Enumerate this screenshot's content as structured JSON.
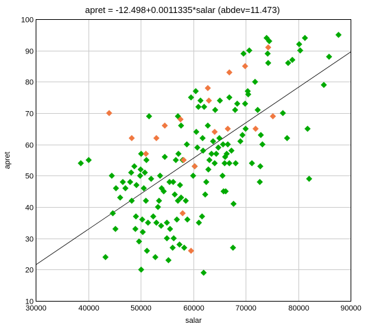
{
  "chart_data": {
    "type": "scatter",
    "title": "apret = -12.498+0.0011335*salar (abdev=11.473)",
    "xlabel": "salar",
    "ylabel": "apret",
    "xlim": [
      30000,
      90000
    ],
    "ylim": [
      10,
      100
    ],
    "x_ticks": [
      "30000",
      "40000",
      "50000",
      "60000",
      "70000",
      "80000",
      "90000"
    ],
    "y_ticks": [
      "10",
      "20",
      "30",
      "40",
      "50",
      "60",
      "70",
      "80",
      "90",
      "100"
    ],
    "grid": true,
    "fit_line": {
      "intercept": -12.498,
      "slope": 0.0011335,
      "color": "#000000"
    },
    "series": [
      {
        "color": "#00aa00",
        "points": [
          [
            38600,
            54
          ],
          [
            40100,
            55
          ],
          [
            43300,
            24
          ],
          [
            44500,
            50
          ],
          [
            44700,
            38
          ],
          [
            45200,
            33
          ],
          [
            45300,
            46
          ],
          [
            46100,
            43
          ],
          [
            46600,
            48
          ],
          [
            47100,
            46
          ],
          [
            48000,
            48
          ],
          [
            48200,
            51
          ],
          [
            48300,
            42
          ],
          [
            48800,
            53
          ],
          [
            49000,
            33
          ],
          [
            49100,
            37
          ],
          [
            49200,
            47
          ],
          [
            49700,
            29
          ],
          [
            49900,
            50
          ],
          [
            50000,
            52
          ],
          [
            50100,
            57
          ],
          [
            50100,
            20
          ],
          [
            50300,
            36
          ],
          [
            50400,
            32
          ],
          [
            50600,
            46
          ],
          [
            50800,
            51
          ],
          [
            51000,
            42
          ],
          [
            51100,
            55
          ],
          [
            51200,
            26
          ],
          [
            51400,
            35
          ],
          [
            51600,
            69
          ],
          [
            52000,
            49
          ],
          [
            52400,
            37
          ],
          [
            52800,
            24
          ],
          [
            53000,
            35
          ],
          [
            53300,
            40
          ],
          [
            53500,
            42
          ],
          [
            53700,
            50
          ],
          [
            53900,
            34
          ],
          [
            54000,
            46
          ],
          [
            54400,
            45
          ],
          [
            54600,
            56
          ],
          [
            55000,
            30
          ],
          [
            55000,
            35
          ],
          [
            55300,
            23
          ],
          [
            55500,
            48
          ],
          [
            55600,
            33
          ],
          [
            56100,
            27
          ],
          [
            56200,
            48
          ],
          [
            56300,
            30
          ],
          [
            56500,
            44
          ],
          [
            56700,
            55
          ],
          [
            56900,
            36
          ],
          [
            57100,
            69
          ],
          [
            57100,
            42
          ],
          [
            57200,
            57
          ],
          [
            57400,
            28
          ],
          [
            57500,
            47
          ],
          [
            57700,
            66
          ],
          [
            57700,
            43
          ],
          [
            58000,
            55
          ],
          [
            58300,
            27
          ],
          [
            58600,
            42
          ],
          [
            58800,
            60
          ],
          [
            58900,
            36
          ],
          [
            59600,
            75
          ],
          [
            60000,
            50
          ],
          [
            60300,
            53
          ],
          [
            60500,
            77
          ],
          [
            60600,
            64
          ],
          [
            60800,
            59
          ],
          [
            61000,
            72
          ],
          [
            61100,
            35
          ],
          [
            61400,
            74
          ],
          [
            61700,
            37
          ],
          [
            61800,
            62
          ],
          [
            61900,
            58
          ],
          [
            62000,
            19
          ],
          [
            62100,
            72
          ],
          [
            62300,
            44
          ],
          [
            62500,
            48
          ],
          [
            62800,
            66
          ],
          [
            62900,
            52
          ],
          [
            63100,
            55
          ],
          [
            63500,
            57
          ],
          [
            63800,
            61
          ],
          [
            64100,
            54
          ],
          [
            64200,
            71
          ],
          [
            64400,
            57
          ],
          [
            64800,
            59
          ],
          [
            65000,
            62
          ],
          [
            65100,
            74
          ],
          [
            65600,
            50
          ],
          [
            65700,
            60
          ],
          [
            65800,
            45
          ],
          [
            66000,
            54
          ],
          [
            66100,
            56
          ],
          [
            66200,
            45
          ],
          [
            66400,
            57
          ],
          [
            66600,
            60
          ],
          [
            66900,
            75
          ],
          [
            66900,
            54
          ],
          [
            67300,
            58
          ],
          [
            67600,
            27
          ],
          [
            67700,
            41
          ],
          [
            68000,
            71
          ],
          [
            68100,
            54
          ],
          [
            68400,
            73
          ],
          [
            69000,
            61
          ],
          [
            69400,
            63
          ],
          [
            69600,
            89
          ],
          [
            69900,
            73
          ],
          [
            70000,
            65
          ],
          [
            70400,
            77
          ],
          [
            70500,
            76
          ],
          [
            70700,
            90
          ],
          [
            71200,
            54
          ],
          [
            71800,
            80
          ],
          [
            72300,
            71
          ],
          [
            72700,
            48
          ],
          [
            72800,
            53
          ],
          [
            72900,
            63
          ],
          [
            73200,
            60
          ],
          [
            74000,
            94
          ],
          [
            74200,
            89
          ],
          [
            74300,
            86
          ],
          [
            74500,
            93
          ],
          [
            77100,
            70
          ],
          [
            77900,
            62
          ],
          [
            78100,
            86
          ],
          [
            78900,
            87
          ],
          [
            80200,
            92
          ],
          [
            80400,
            90
          ],
          [
            81300,
            94
          ],
          [
            81800,
            65
          ],
          [
            82100,
            49
          ],
          [
            84900,
            79
          ],
          [
            85900,
            88
          ],
          [
            87700,
            95
          ]
        ]
      },
      {
        "color": "#f07840",
        "points": [
          [
            44000,
            70
          ],
          [
            48300,
            62
          ],
          [
            51000,
            57
          ],
          [
            53000,
            62
          ],
          [
            54600,
            66
          ],
          [
            57600,
            68
          ],
          [
            58000,
            38
          ],
          [
            58200,
            55
          ],
          [
            59600,
            26
          ],
          [
            60300,
            53
          ],
          [
            62800,
            78
          ],
          [
            63000,
            74
          ],
          [
            64100,
            64
          ],
          [
            66600,
            65
          ],
          [
            66900,
            83
          ],
          [
            69900,
            85
          ],
          [
            71900,
            65
          ],
          [
            74300,
            91
          ],
          [
            75200,
            69
          ]
        ]
      }
    ]
  }
}
